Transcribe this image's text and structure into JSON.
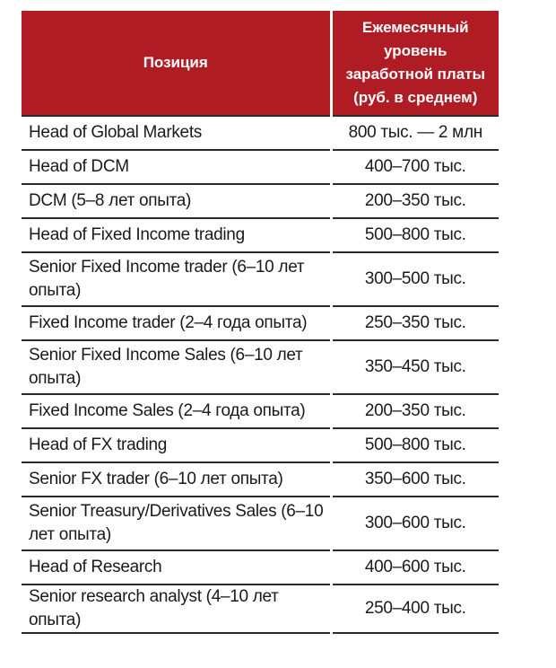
{
  "table": {
    "header": {
      "position": "Позиция",
      "salary_lines": [
        "Ежемесячный",
        "уровень",
        "заработной платы",
        "(руб. в среднем)"
      ]
    },
    "rows": [
      {
        "name": "Head of Global Markets",
        "value": "800 тыс. — 2 млн"
      },
      {
        "name": "Head of DCM",
        "value": "400–700 тыс."
      },
      {
        "name": "DCM (5–8 лет опыта)",
        "value": "200–350 тыс."
      },
      {
        "name": "Head of Fixed Income trading",
        "value": "500–800 тыс."
      },
      {
        "name": "Senior Fixed Income trader (6–10 лет опыта)",
        "value": "300–500 тыс."
      },
      {
        "name": "Fixed Income trader (2–4 года опыта)",
        "value": "250–350 тыс."
      },
      {
        "name": "Senior Fixed Income Sales (6–10 лет опыта)",
        "value": "350–450 тыс."
      },
      {
        "name": "Fixed Income Sales (2–4 года опыта)",
        "value": "200–350 тыс."
      },
      {
        "name": "Head of FX trading",
        "value": "500–800 тыс."
      },
      {
        "name": "Senior FX trader (6–10 лет опыта)",
        "value": "350–600 тыс."
      },
      {
        "name": "Senior Treasury/Derivatives Sales (6–10 лет опыта)",
        "value": "300–600 тыс."
      },
      {
        "name": "Head of Research",
        "value": "400–600 тыс."
      },
      {
        "name": "Senior research analyst (4–10 лет опыта)",
        "value": "250–400 тыс."
      }
    ],
    "colors": {
      "header_bg": "#b01c23",
      "header_text": "#ffffff",
      "rule": "#2a2a2a"
    }
  }
}
